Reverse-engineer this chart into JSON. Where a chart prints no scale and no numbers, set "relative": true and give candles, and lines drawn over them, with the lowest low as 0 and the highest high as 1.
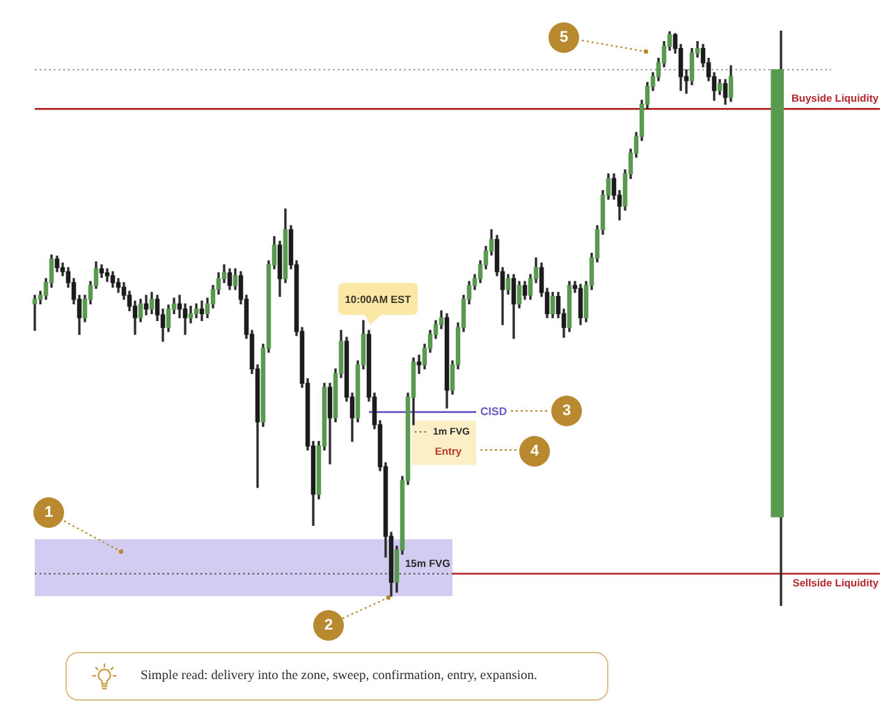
{
  "chart_data": {
    "type": "candlestick",
    "relative": true,
    "tick_labels": false,
    "categories": [
      null,
      null,
      null,
      null,
      null,
      null,
      null,
      null,
      null,
      null,
      null,
      null,
      null,
      null,
      null,
      null,
      null,
      null,
      null,
      null,
      null,
      null,
      null,
      null,
      null,
      null,
      null,
      null,
      null,
      null,
      null,
      null,
      null,
      null,
      null,
      null,
      null,
      null,
      null,
      null,
      null,
      null,
      null,
      null,
      null,
      null,
      null,
      null,
      null,
      null,
      null,
      null,
      null,
      null,
      null,
      null,
      null,
      null,
      null,
      null,
      null,
      null,
      null,
      null,
      null,
      null,
      null,
      null,
      null,
      null,
      null,
      null,
      null,
      null,
      null,
      null,
      null,
      null,
      null,
      null,
      null,
      null,
      null,
      null,
      null,
      null,
      null,
      null,
      null,
      null,
      null,
      null,
      null,
      null,
      null,
      null,
      null,
      null,
      null,
      null,
      null,
      null,
      null,
      null,
      null,
      null,
      null,
      null,
      null,
      null,
      null,
      null,
      null,
      null,
      null,
      null,
      null,
      null,
      null,
      null,
      null,
      null,
      null,
      null,
      null,
      null,
      null,
      null,
      null,
      null,
      null,
      null,
      null,
      null,
      null
    ],
    "series": [
      {
        "colors": [
          "#5a9a50",
          "#5a9a50",
          "#5a9a50",
          "#5a9a50",
          "#1c1c1c",
          "#1c1c1c",
          "#1c1c1c",
          "#1c1c1c",
          "#1c1c1c",
          "#5a9a50",
          "#5a9a50",
          "#5a9a50",
          "#1c1c1c",
          "#1c1c1c",
          "#1c1c1c",
          "#1c1c1c",
          "#1c1c1c",
          "#1c1c1c",
          "#1c1c1c",
          "#5a9a50",
          "#1c1c1c",
          "#5a9a50",
          "#1c1c1c",
          "#1c1c1c",
          "#5a9a50",
          "#5a9a50",
          "#1c1c1c",
          "#1c1c1c",
          "#5a9a50",
          "#5a9a50",
          "#1c1c1c",
          "#5a9a50",
          "#5a9a50",
          "#5a9a50",
          "#5a9a50",
          "#1c1c1c",
          "#5a9a50",
          "#1c1c1c",
          "#1c1c1c",
          "#1c1c1c",
          "#1c1c1c",
          "#5a9a50",
          "#5a9a50",
          "#5a9a50",
          "#1c1c1c",
          "#5a9a50",
          "#1c1c1c",
          "#1c1c1c",
          "#1c1c1c",
          "#1c1c1c",
          "#1c1c1c",
          "#5a9a50",
          "#5a9a50",
          "#1c1c1c",
          "#5a9a50",
          "#5a9a50",
          "#1c1c1c",
          "#1c1c1c",
          "#5a9a50",
          "#5a9a50",
          "#1c1c1c",
          "#1c1c1c",
          "#1c1c1c",
          "#1c1c1c",
          "#1c1c1c",
          "#5a9a50",
          "#5a9a50",
          "#5a9a50",
          "#5a9a50",
          "#1c1c1c",
          "#5a9a50",
          "#5a9a50",
          "#5a9a50",
          "#5a9a50",
          "#1c1c1c",
          "#5a9a50",
          "#5a9a50",
          "#5a9a50",
          "#5a9a50",
          "#5a9a50",
          "#5a9a50",
          "#5a9a50",
          "#5a9a50",
          "#1c1c1c",
          "#1c1c1c",
          "#5a9a50",
          "#1c1c1c",
          "#5a9a50",
          "#1c1c1c",
          "#5a9a50",
          "#5a9a50",
          "#1c1c1c",
          "#1c1c1c",
          "#5a9a50",
          "#1c1c1c",
          "#1c1c1c",
          "#5a9a50",
          "#1c1c1c",
          "#1c1c1c",
          "#5a9a50",
          "#5a9a50",
          "#5a9a50",
          "#5a9a50",
          "#5a9a50",
          "#1c1c1c",
          "#1c1c1c",
          "#5a9a50",
          "#5a9a50",
          "#5a9a50",
          "#5a9a50",
          "#5a9a50",
          "#5a9a50",
          "#5a9a50",
          "#5a9a50",
          "#5a9a50",
          "#1c1c1c",
          "#1c1c1c",
          "#1c1c1c",
          "#5a9a50",
          "#5a9a50",
          "#1c1c1c",
          "#1c1c1c",
          "#1c1c1c",
          "#5a9a50",
          "#1c1c1c",
          "#5a9a50",
          null,
          null,
          null,
          null,
          null,
          null,
          null,
          null,
          null
        ],
        "ohlc": [
          [
            0.525,
            0.54,
            0.479,
            0.533
          ],
          [
            0.533,
            0.547,
            0.525,
            0.54
          ],
          [
            0.54,
            0.569,
            0.533,
            0.562
          ],
          [
            0.562,
            0.61,
            0.554,
            0.603
          ],
          [
            0.603,
            0.608,
            0.581,
            0.588
          ],
          [
            0.588,
            0.596,
            0.574,
            0.581
          ],
          [
            0.581,
            0.588,
            0.554,
            0.562
          ],
          [
            0.562,
            0.569,
            0.525,
            0.533
          ],
          [
            0.533,
            0.54,
            0.472,
            0.501
          ],
          [
            0.501,
            0.54,
            0.494,
            0.533
          ],
          [
            0.533,
            0.564,
            0.525,
            0.557
          ],
          [
            0.557,
            0.598,
            0.552,
            0.586
          ],
          [
            0.586,
            0.593,
            0.571,
            0.579
          ],
          [
            0.579,
            0.586,
            0.564,
            0.574
          ],
          [
            0.574,
            0.581,
            0.554,
            0.562
          ],
          [
            0.562,
            0.569,
            0.545,
            0.554
          ],
          [
            0.554,
            0.562,
            0.533,
            0.54
          ],
          [
            0.54,
            0.547,
            0.513,
            0.521
          ],
          [
            0.521,
            0.53,
            0.472,
            0.501
          ],
          [
            0.501,
            0.533,
            0.494,
            0.525
          ],
          [
            0.525,
            0.54,
            0.506,
            0.516
          ],
          [
            0.516,
            0.545,
            0.508,
            0.533
          ],
          [
            0.533,
            0.54,
            0.496,
            0.506
          ],
          [
            0.506,
            0.516,
            0.46,
            0.484
          ],
          [
            0.484,
            0.523,
            0.477,
            0.516
          ],
          [
            0.516,
            0.535,
            0.508,
            0.525
          ],
          [
            0.525,
            0.54,
            0.501,
            0.516
          ],
          [
            0.516,
            0.525,
            0.472,
            0.501
          ],
          [
            0.501,
            0.521,
            0.492,
            0.508
          ],
          [
            0.508,
            0.525,
            0.501,
            0.516
          ],
          [
            0.516,
            0.53,
            0.496,
            0.508
          ],
          [
            0.508,
            0.535,
            0.501,
            0.525
          ],
          [
            0.525,
            0.557,
            0.518,
            0.55
          ],
          [
            0.55,
            0.579,
            0.542,
            0.569
          ],
          [
            0.569,
            0.593,
            0.562,
            0.579
          ],
          [
            0.579,
            0.586,
            0.55,
            0.557
          ],
          [
            0.557,
            0.586,
            0.55,
            0.574
          ],
          [
            0.574,
            0.581,
            0.525,
            0.533
          ],
          [
            0.533,
            0.54,
            0.465,
            0.472
          ],
          [
            0.472,
            0.479,
            0.404,
            0.412
          ],
          [
            0.412,
            0.419,
            0.206,
            0.32
          ],
          [
            0.32,
            0.455,
            0.312,
            0.448
          ],
          [
            0.448,
            0.6,
            0.441,
            0.593
          ],
          [
            0.593,
            0.642,
            0.586,
            0.627
          ],
          [
            0.627,
            0.634,
            0.538,
            0.569
          ],
          [
            0.569,
            0.69,
            0.562,
            0.654
          ],
          [
            0.654,
            0.661,
            0.586,
            0.593
          ],
          [
            0.593,
            0.6,
            0.47,
            0.477
          ],
          [
            0.477,
            0.484,
            0.38,
            0.387
          ],
          [
            0.387,
            0.395,
            0.271,
            0.278
          ],
          [
            0.278,
            0.286,
            0.14,
            0.194
          ],
          [
            0.194,
            0.286,
            0.186,
            0.278
          ],
          [
            0.278,
            0.387,
            0.271,
            0.38
          ],
          [
            0.38,
            0.387,
            0.247,
            0.327
          ],
          [
            0.327,
            0.412,
            0.32,
            0.404
          ],
          [
            0.404,
            0.479,
            0.397,
            0.46
          ],
          [
            0.46,
            0.467,
            0.356,
            0.363
          ],
          [
            0.363,
            0.37,
            0.286,
            0.327
          ],
          [
            0.327,
            0.426,
            0.32,
            0.419
          ],
          [
            0.419,
            0.496,
            0.412,
            0.472
          ],
          [
            0.472,
            0.479,
            0.356,
            0.363
          ],
          [
            0.363,
            0.37,
            0.308,
            0.315
          ],
          [
            0.315,
            0.322,
            0.235,
            0.242
          ],
          [
            0.242,
            0.249,
            0.085,
            0.121
          ],
          [
            0.121,
            0.128,
            0.017,
            0.041
          ],
          [
            0.041,
            0.104,
            0.024,
            0.097
          ],
          [
            0.097,
            0.225,
            0.09,
            0.218
          ],
          [
            0.218,
            0.37,
            0.211,
            0.363
          ],
          [
            0.363,
            0.431,
            0.315,
            0.424
          ],
          [
            0.424,
            0.436,
            0.404,
            0.419
          ],
          [
            0.419,
            0.455,
            0.412,
            0.448
          ],
          [
            0.448,
            0.479,
            0.441,
            0.472
          ],
          [
            0.472,
            0.496,
            0.465,
            0.489
          ],
          [
            0.489,
            0.513,
            0.482,
            0.501
          ],
          [
            0.501,
            0.508,
            0.344,
            0.375
          ],
          [
            0.375,
            0.426,
            0.368,
            0.419
          ],
          [
            0.419,
            0.492,
            0.412,
            0.484
          ],
          [
            0.484,
            0.54,
            0.477,
            0.533
          ],
          [
            0.533,
            0.564,
            0.525,
            0.557
          ],
          [
            0.557,
            0.576,
            0.55,
            0.569
          ],
          [
            0.569,
            0.6,
            0.562,
            0.593
          ],
          [
            0.593,
            0.625,
            0.586,
            0.617
          ],
          [
            0.617,
            0.654,
            0.61,
            0.637
          ],
          [
            0.637,
            0.644,
            0.574,
            0.581
          ],
          [
            0.581,
            0.588,
            0.489,
            0.55
          ],
          [
            0.55,
            0.576,
            0.542,
            0.569
          ],
          [
            0.569,
            0.576,
            0.465,
            0.525
          ],
          [
            0.525,
            0.564,
            0.518,
            0.557
          ],
          [
            0.557,
            0.564,
            0.533,
            0.54
          ],
          [
            0.54,
            0.576,
            0.533,
            0.569
          ],
          [
            0.569,
            0.605,
            0.562,
            0.588
          ],
          [
            0.588,
            0.596,
            0.538,
            0.545
          ],
          [
            0.545,
            0.552,
            0.501,
            0.508
          ],
          [
            0.508,
            0.545,
            0.501,
            0.538
          ],
          [
            0.538,
            0.545,
            0.501,
            0.508
          ],
          [
            0.508,
            0.516,
            0.467,
            0.484
          ],
          [
            0.484,
            0.564,
            0.477,
            0.557
          ],
          [
            0.557,
            0.564,
            0.545,
            0.552
          ],
          [
            0.552,
            0.559,
            0.489,
            0.501
          ],
          [
            0.501,
            0.564,
            0.494,
            0.557
          ],
          [
            0.557,
            0.613,
            0.55,
            0.605
          ],
          [
            0.605,
            0.661,
            0.598,
            0.654
          ],
          [
            0.654,
            0.722,
            0.646,
            0.714
          ],
          [
            0.714,
            0.751,
            0.707,
            0.743
          ],
          [
            0.743,
            0.751,
            0.707,
            0.714
          ],
          [
            0.714,
            0.722,
            0.671,
            0.695
          ],
          [
            0.695,
            0.758,
            0.688,
            0.751
          ],
          [
            0.751,
            0.794,
            0.743,
            0.787
          ],
          [
            0.787,
            0.823,
            0.78,
            0.816
          ],
          [
            0.816,
            0.879,
            0.809,
            0.872
          ],
          [
            0.872,
            0.91,
            0.864,
            0.903
          ],
          [
            0.903,
            0.927,
            0.896,
            0.92
          ],
          [
            0.92,
            0.952,
            0.913,
            0.944
          ],
          [
            0.944,
            0.981,
            0.937,
            0.973
          ],
          [
            0.973,
            0.998,
            0.966,
            0.993
          ],
          [
            0.993,
            0.995,
            0.961,
            0.969
          ],
          [
            0.969,
            0.976,
            0.896,
            0.92
          ],
          [
            0.92,
            0.932,
            0.891,
            0.913
          ],
          [
            0.913,
            0.969,
            0.906,
            0.961
          ],
          [
            0.961,
            0.981,
            0.954,
            0.969
          ],
          [
            0.969,
            0.976,
            0.937,
            0.944
          ],
          [
            0.944,
            0.952,
            0.913,
            0.92
          ],
          [
            0.92,
            0.927,
            0.879,
            0.896
          ],
          [
            0.896,
            0.915,
            0.889,
            0.908
          ],
          [
            0.908,
            0.915,
            0.872,
            0.884
          ],
          [
            0.884,
            0.939,
            0.877,
            0.92
          ],
          null,
          null,
          null,
          null,
          null,
          null,
          null,
          null,
          null
        ]
      },
      {
        "color": "#5a9a50",
        "ohlc": [
          null,
          null,
          null,
          null,
          null,
          null,
          null,
          null,
          null,
          null,
          null,
          null,
          null,
          null,
          null,
          null,
          null,
          null,
          null,
          null,
          null,
          null,
          null,
          null,
          null,
          null,
          null,
          null,
          null,
          null,
          null,
          null,
          null,
          null,
          null,
          null,
          null,
          null,
          null,
          null,
          null,
          null,
          null,
          null,
          null,
          null,
          null,
          null,
          null,
          null,
          null,
          null,
          null,
          null,
          null,
          null,
          null,
          null,
          null,
          null,
          null,
          null,
          null,
          null,
          null,
          null,
          null,
          null,
          null,
          null,
          null,
          null,
          null,
          null,
          null,
          null,
          null,
          null,
          null,
          null,
          null,
          null,
          null,
          null,
          null,
          null,
          null,
          null,
          null,
          null,
          null,
          null,
          null,
          null,
          null,
          null,
          null,
          null,
          null,
          null,
          null,
          null,
          null,
          null,
          null,
          null,
          null,
          null,
          null,
          null,
          null,
          null,
          null,
          null,
          null,
          null,
          null,
          null,
          null,
          null,
          null,
          null,
          null,
          null,
          null,
          null,
          null,
          null,
          null,
          null,
          null,
          null,
          null,
          null,
          [
            0.155,
            1,
            0,
            0.932
          ]
        ]
      }
    ],
    "ref_lines": [
      {
        "axis": "y",
        "value": 0.932,
        "line_style": "dotted",
        "color": "#8c8c8c"
      },
      {
        "axis": "y",
        "value": 0.864,
        "label": "Buyside Liquidity",
        "color": "#b3272d"
      },
      {
        "axis": "y",
        "value": 0.056,
        "label": "Sellside Liquidity",
        "color": "#b3272d"
      },
      {
        "axis": "y",
        "value": 0.056,
        "line_style": "dotted",
        "color": "#4d4d4d"
      },
      {
        "axis": "y",
        "value": 0.337,
        "label": "CISD",
        "color": "#6a5cc4"
      }
    ],
    "bands": [
      {
        "axis": "y",
        "from": 0.017,
        "to": 0.116,
        "label": "15m FVG",
        "color": "#d3ccf2"
      },
      {
        "axis": "y",
        "from": 0.245,
        "to": 0.322,
        "label": "1m FVG",
        "color": "#fcefc7"
      }
    ],
    "annotations": [
      "1",
      "2",
      "3",
      "4",
      "5",
      "10:00AM EST",
      "Entry",
      "Simple read: delivery into the zone, sweep, confirmation, entry, expansion."
    ]
  }
}
